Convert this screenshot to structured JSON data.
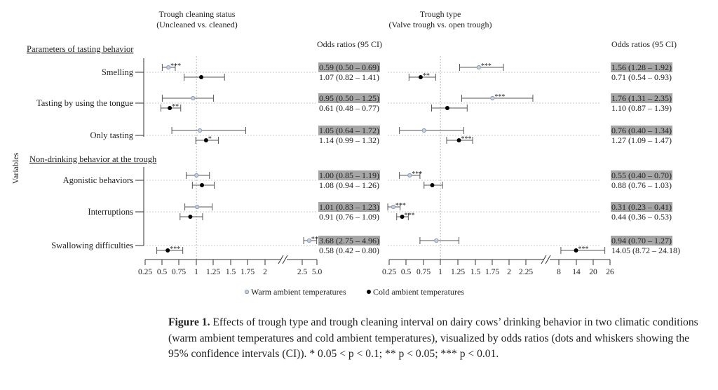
{
  "chart_data": {
    "type": "forest",
    "y_axis_label": "Variables",
    "legend": {
      "position": "bottom",
      "entries": [
        {
          "name": "Warm ambient temperatures",
          "marker": "open-circle",
          "color": "#8a9bb5"
        },
        {
          "name": "Cold ambient temperatures",
          "marker": "filled-circle",
          "color": "#000000"
        }
      ]
    },
    "groups": [
      {
        "title": "Parameters of tasting behavior",
        "variables": [
          "Smelling",
          "Tasting by using the tongue",
          "Only tasting"
        ]
      },
      {
        "title": "Non-drinking behavior at the trough",
        "variables": [
          "Agonistic behaviors",
          "Interruptions",
          "Swallowing difficulties"
        ]
      }
    ],
    "reference_line": 1,
    "panels": [
      {
        "title": "Trough cleaning status",
        "subtitle": "(Uncleaned vs. cleaned)",
        "table_header": "Odds ratios (95 CI)",
        "x_ticks": [
          "0.25",
          "0.5",
          "0.75",
          "1",
          "1.25",
          "1.5",
          "1.75",
          "2",
          "2.5",
          "5.0"
        ],
        "axis_break": "between 2 and 2.5",
        "rows": [
          {
            "variable": "Smelling",
            "warm": {
              "or": 0.59,
              "lo": 0.5,
              "hi": 0.69,
              "sig": "***",
              "label": "0.59 (0.50 – 0.69)"
            },
            "cold": {
              "or": 1.07,
              "lo": 0.82,
              "hi": 1.41,
              "sig": "",
              "label": "1.07 (0.82 – 1.41)"
            }
          },
          {
            "variable": "Tasting by using the tongue",
            "warm": {
              "or": 0.95,
              "lo": 0.5,
              "hi": 1.25,
              "sig": "",
              "label": "0.95 (0.50 – 1.25)"
            },
            "cold": {
              "or": 0.61,
              "lo": 0.48,
              "hi": 0.77,
              "sig": "**",
              "label": "0.61 (0.48 – 0.77)"
            }
          },
          {
            "variable": "Only tasting",
            "warm": {
              "or": 1.05,
              "lo": 0.64,
              "hi": 1.72,
              "sig": "",
              "label": "1.05 (0.64 – 1.72)"
            },
            "cold": {
              "or": 1.14,
              "lo": 0.99,
              "hi": 1.32,
              "sig": "*",
              "label": "1.14 (0.99 – 1.32)"
            }
          },
          {
            "variable": "Agonistic behaviors",
            "warm": {
              "or": 1.0,
              "lo": 0.85,
              "hi": 1.19,
              "sig": "",
              "label": "1.00 (0.85 – 1.19)"
            },
            "cold": {
              "or": 1.08,
              "lo": 0.94,
              "hi": 1.26,
              "sig": "",
              "label": "1.08 (0.94 – 1.26)"
            }
          },
          {
            "variable": "Interruptions",
            "warm": {
              "or": 1.01,
              "lo": 0.83,
              "hi": 1.23,
              "sig": "",
              "label": "1.01 (0.83 – 1.23)"
            },
            "cold": {
              "or": 0.91,
              "lo": 0.76,
              "hi": 1.09,
              "sig": "",
              "label": "0.91 (0.76 – 1.09)"
            }
          },
          {
            "variable": "Swallowing difficulties",
            "warm": {
              "or": 3.68,
              "lo": 2.75,
              "hi": 4.96,
              "sig": "***",
              "label": "3.68 (2.75 – 4.96)"
            },
            "cold": {
              "or": 0.58,
              "lo": 0.42,
              "hi": 0.8,
              "sig": "***",
              "label": "0.58 (0.42 – 0.80)"
            }
          }
        ]
      },
      {
        "title": "Trough type",
        "subtitle": "(Valve trough vs. open trough)",
        "table_header": "Odds ratios (95 CI)",
        "x_ticks": [
          "0.25",
          "0.5",
          "0.75",
          "1",
          "1.25",
          "1.5",
          "1.75",
          "2",
          "2.25",
          "8",
          "14",
          "20",
          "26"
        ],
        "axis_break": "between 2.25 and 8",
        "rows": [
          {
            "variable": "Smelling",
            "warm": {
              "or": 1.56,
              "lo": 1.28,
              "hi": 1.92,
              "sig": "***",
              "label": "1.56 (1.28 – 1.92)"
            },
            "cold": {
              "or": 0.71,
              "lo": 0.54,
              "hi": 0.93,
              "sig": "**",
              "label": "0.71 (0.54 – 0.93)"
            }
          },
          {
            "variable": "Tasting by using the tongue",
            "warm": {
              "or": 1.76,
              "lo": 1.31,
              "hi": 2.35,
              "sig": "***",
              "label": "1.76 (1.31 – 2.35)"
            },
            "cold": {
              "or": 1.1,
              "lo": 0.87,
              "hi": 1.39,
              "sig": "",
              "label": "1.10 (0.87 – 1.39)"
            }
          },
          {
            "variable": "Only tasting",
            "warm": {
              "or": 0.76,
              "lo": 0.4,
              "hi": 1.34,
              "sig": "",
              "label": "0.76 (0.40 – 1.34)"
            },
            "cold": {
              "or": 1.27,
              "lo": 1.09,
              "hi": 1.47,
              "sig": "***",
              "label": "1.27 (1.09 – 1.47)"
            }
          },
          {
            "variable": "Agonistic behaviors",
            "warm": {
              "or": 0.55,
              "lo": 0.4,
              "hi": 0.7,
              "sig": "***",
              "label": "0.55 (0.40 – 0.70)"
            },
            "cold": {
              "or": 0.88,
              "lo": 0.76,
              "hi": 1.03,
              "sig": "",
              "label": "0.88 (0.76 – 1.03)"
            }
          },
          {
            "variable": "Interruptions",
            "warm": {
              "or": 0.31,
              "lo": 0.23,
              "hi": 0.41,
              "sig": "***",
              "label": "0.31 (0.23 – 0.41)"
            },
            "cold": {
              "or": 0.44,
              "lo": 0.36,
              "hi": 0.53,
              "sig": "***",
              "label": "0.44 (0.36 – 0.53)"
            }
          },
          {
            "variable": "Swallowing difficulties",
            "warm": {
              "or": 0.94,
              "lo": 0.7,
              "hi": 1.27,
              "sig": "",
              "label": "0.94 (0.70 – 1.27)"
            },
            "cold": {
              "or": 14.05,
              "lo": 8.72,
              "hi": 24.18,
              "sig": "***",
              "label": "14.05 (8.72 – 24.18)"
            }
          }
        ]
      }
    ]
  },
  "caption": {
    "label": "Figure 1.",
    "text": "Effects of trough type and trough cleaning interval on dairy cows’ drinking behavior in two climatic conditions (warm ambient temperatures and cold ambient temperatures), visualized by odds ratios (dots and whiskers showing the 95% confidence intervals (CI)). * 0.05 < p < 0.1; ** p < 0.05; *** p < 0.01."
  }
}
